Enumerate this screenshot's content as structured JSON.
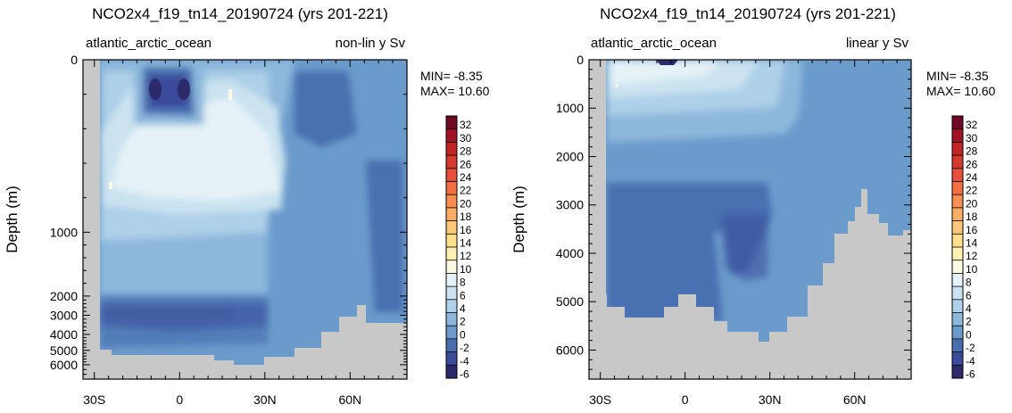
{
  "chart_data": [
    {
      "type": "heatmap",
      "title": "NCO2x4_f19_tn14_20190724 (yrs 201-221)",
      "region_label": "atlantic_arctic_ocean",
      "scale_label": "non-lin y Sv",
      "min_label": "MIN= -8.35",
      "max_label": "MAX= 10.60",
      "ylabel": "Depth (m)",
      "xlabel": "",
      "y_scale": "non-linear",
      "x_ticks": [
        "30S",
        "0",
        "30N",
        "60N"
      ],
      "x_tick_values": [
        -30,
        0,
        30,
        60
      ],
      "xlim": [
        -34,
        80
      ],
      "y_ticks": [
        "0",
        "1000",
        "2000",
        "3000",
        "4000",
        "5000",
        "6000"
      ],
      "y_tick_values": [
        0,
        1000,
        2000,
        3000,
        4000,
        5000,
        6000
      ],
      "ylim": [
        0,
        6600
      ],
      "units": "Sv",
      "colorbar_ticks": [
        "32",
        "30",
        "28",
        "26",
        "24",
        "22",
        "20",
        "18",
        "16",
        "14",
        "12",
        "10",
        "8",
        "6",
        "4",
        "2",
        "0",
        "-2",
        "-4",
        "-6"
      ]
    },
    {
      "type": "heatmap",
      "title": "NCO2x4_f19_tn14_20190724 (yrs 201-221)",
      "region_label": "atlantic_arctic_ocean",
      "scale_label": "linear y Sv",
      "min_label": "MIN= -8.35",
      "max_label": "MAX= 10.60",
      "ylabel": "Depth (m)",
      "xlabel": "",
      "y_scale": "linear",
      "x_ticks": [
        "30S",
        "0",
        "30N",
        "60N"
      ],
      "x_tick_values": [
        -30,
        0,
        30,
        60
      ],
      "xlim": [
        -34,
        80
      ],
      "y_ticks": [
        "0",
        "1000",
        "2000",
        "3000",
        "4000",
        "5000",
        "6000"
      ],
      "y_tick_values": [
        0,
        1000,
        2000,
        3000,
        4000,
        5000,
        6000
      ],
      "ylim": [
        0,
        6600
      ],
      "units": "Sv",
      "colorbar_ticks": [
        "32",
        "30",
        "28",
        "26",
        "24",
        "22",
        "20",
        "18",
        "16",
        "14",
        "12",
        "10",
        "8",
        "6",
        "4",
        "2",
        "0",
        "-2",
        "-4",
        "-6"
      ]
    }
  ],
  "colors": {
    "land": "#c8c8c8",
    "palette": [
      "#2c2a6a",
      "#3b4a9a",
      "#4a6fb0",
      "#6b9bcb",
      "#8db8dc",
      "#aed0e8",
      "#cbe3f0",
      "#e6f2f7",
      "#fbfbe4",
      "#fff1b3",
      "#fee08b",
      "#fdc77a",
      "#fcac62",
      "#f98e52",
      "#f26f43",
      "#e6503a",
      "#d63a2f",
      "#c02424",
      "#9f1124",
      "#6e0a23"
    ]
  }
}
